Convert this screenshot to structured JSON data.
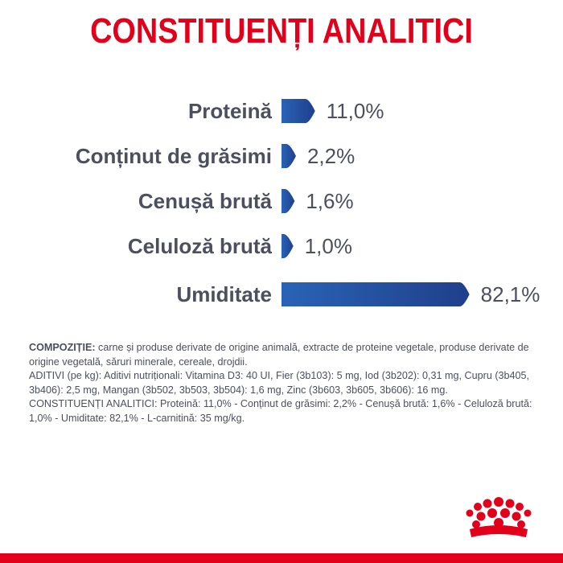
{
  "title": "CONSTITUENȚI ANALITICI",
  "chart_data": {
    "type": "bar",
    "orientation": "horizontal",
    "categories": [
      "Proteină",
      "Conținut de grăsimi",
      "Cenușă brută",
      "Celuloză brută",
      "Umiditate"
    ],
    "values": [
      11.0,
      2.2,
      1.6,
      1.0,
      82.1
    ],
    "value_labels": [
      "11,0%",
      "2,2%",
      "1,6%",
      "1,0%",
      "82,1%"
    ],
    "unit": "%",
    "xlim": [
      0,
      100
    ],
    "grid": false,
    "colors": {
      "bar_start": "#2a63b6",
      "bar_end": "#1f3f8c",
      "text": "#4b4f5e"
    }
  },
  "composition": {
    "compozitie_heading": "COMPOZIȚIE:",
    "compozitie_text": " carne și produse derivate de origine animală, extracte de proteine vegetale, produse derivate de origine vegetală, săruri minerale, cereale, drojdii.",
    "aditivi": "ADITIVI (pe kg): Aditivi nutriționali: Vitamina D3: 40 UI, Fier (3b103): 5 mg, Iod (3b202): 0,31 mg, Cupru (3b405, 3b406): 2,5 mg, Mangan (3b502, 3b503, 3b504): 1,6 mg, Zinc (3b603, 3b605, 3b606): 16 mg.",
    "constituenti": "CONSTITUENȚI ANALITICI: Proteină: 11,0% - Conținut de grăsimi: 2,2% - Cenușă brută: 1,6% - Celuloză brută: 1,0% - Umiditate: 82,1% - L-carnitină: 35 mg/kg."
  },
  "brand": {
    "logo_icon": "royal-canin-crown-icon",
    "accent": "#e2001a"
  }
}
